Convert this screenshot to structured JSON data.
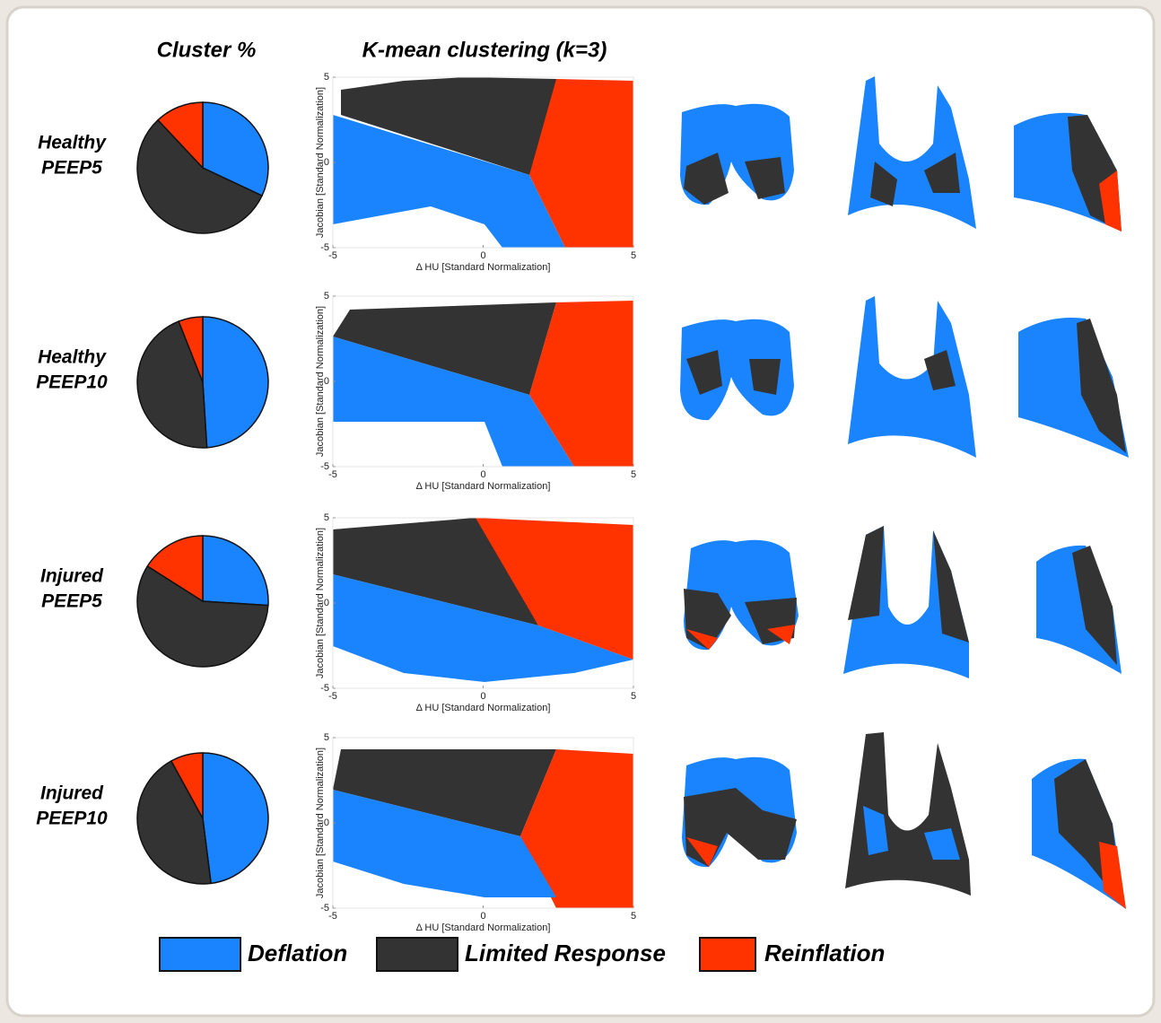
{
  "figure": {
    "pie_heading": "Cluster %",
    "scatter_heading": "K-mean clustering (k=3)",
    "rows": [
      {
        "group": "Healthy",
        "condition": "PEEP5"
      },
      {
        "group": "Healthy",
        "condition": "PEEP10"
      },
      {
        "group": "Injured",
        "condition": "PEEP5"
      },
      {
        "group": "Injured",
        "condition": "PEEP10"
      }
    ]
  },
  "legend": [
    {
      "name": "Deflation",
      "color": "#1a84ff"
    },
    {
      "name": "Limited Response",
      "color": "#333333"
    },
    {
      "name": "Reinflation",
      "color": "#ff3300"
    }
  ],
  "chart_data": [
    {
      "type": "pie",
      "values": [
        32,
        56,
        12
      ],
      "colors": [
        "#1a84ff",
        "#333333",
        "#ff3300"
      ]
    },
    {
      "type": "pie",
      "values": [
        49,
        45,
        6
      ],
      "colors": [
        "#1a84ff",
        "#333333",
        "#ff3300"
      ]
    },
    {
      "type": "pie",
      "values": [
        26,
        58,
        16
      ],
      "colors": [
        "#1a84ff",
        "#333333",
        "#ff3300"
      ]
    },
    {
      "type": "pie",
      "values": [
        48,
        44,
        8
      ],
      "colors": [
        "#1a84ff",
        "#333333",
        "#ff3300"
      ]
    },
    {
      "type": "scatter",
      "xlabel": "Δ HU [Standard Normalization]",
      "ylabel": "Jacobian [Standard Normalization]",
      "xlim": [
        -5,
        5
      ],
      "ylim": [
        -5,
        5
      ],
      "xticks": [
        -5,
        0,
        5
      ],
      "yticks": [
        -5,
        0,
        5
      ]
    },
    {
      "type": "scatter",
      "xlabel": "Δ HU [Standard Normalization]",
      "ylabel": "Jacobian [Standard Normalization]",
      "xlim": [
        -5,
        5
      ],
      "ylim": [
        -5,
        5
      ],
      "xticks": [
        -5,
        0,
        5
      ],
      "yticks": [
        -5,
        0,
        5
      ]
    },
    {
      "type": "scatter",
      "xlabel": "Δ HU [Standard Normalization]",
      "ylabel": "Jacobian [Standard Normalization]",
      "xlim": [
        -5,
        5
      ],
      "ylim": [
        -5,
        5
      ],
      "xticks": [
        -5,
        0,
        5
      ],
      "yticks": [
        -5,
        0,
        5
      ]
    },
    {
      "type": "scatter",
      "xlabel": "Δ HU [Standard Normalization]",
      "ylabel": "Jacobian [Standard Normalization]",
      "xlim": [
        -5,
        5
      ],
      "ylim": [
        -5,
        5
      ],
      "xticks": [
        -5,
        0,
        5
      ],
      "yticks": [
        -5,
        0,
        5
      ]
    }
  ]
}
